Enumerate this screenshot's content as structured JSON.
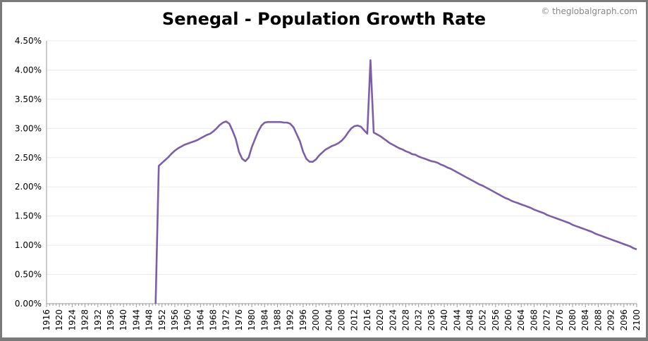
{
  "title": "Senegal - Population Growth Rate",
  "copyright": "© theglobalgraph.com",
  "colors": {
    "line": "#7b5fa8",
    "grid": "#ebebeb",
    "axis": "#999999",
    "border": "#7a7a7a"
  },
  "chart_data": {
    "type": "line",
    "title": "Senegal - Population Growth Rate",
    "xlabel": "",
    "ylabel": "",
    "xlim": [
      1916,
      2100
    ],
    "ylim": [
      0,
      4.5
    ],
    "grid": true,
    "y_unit": "%",
    "y_ticks": [
      "0.00%",
      "0.50%",
      "1.00%",
      "1.50%",
      "2.00%",
      "2.50%",
      "3.00%",
      "3.50%",
      "4.00%",
      "4.50%"
    ],
    "y_tick_values": [
      0,
      0.5,
      1,
      1.5,
      2,
      2.5,
      3,
      3.5,
      4,
      4.5
    ],
    "x_ticks": [
      "1916",
      "1920",
      "1924",
      "1928",
      "1932",
      "1936",
      "1940",
      "1944",
      "1948",
      "1952",
      "1956",
      "1960",
      "1964",
      "1968",
      "1972",
      "1976",
      "1980",
      "1984",
      "1988",
      "1992",
      "1996",
      "2000",
      "2004",
      "2008",
      "2012",
      "2016",
      "2020",
      "2024",
      "2028",
      "2032",
      "2036",
      "2040",
      "2044",
      "2048",
      "2052",
      "2056",
      "2060",
      "2064",
      "2068",
      "2072",
      "2076",
      "2080",
      "2084",
      "2088",
      "2092",
      "2096",
      "2100"
    ],
    "series": [
      {
        "x": [
          1950,
          1951,
          1952,
          1953,
          1954,
          1955,
          1956,
          1957,
          1958,
          1959,
          1960,
          1961,
          1962,
          1963,
          1964,
          1965,
          1966,
          1967,
          1968,
          1969,
          1970,
          1971,
          1972,
          1973,
          1974,
          1975,
          1976,
          1977,
          1978,
          1979,
          1980,
          1981,
          1982,
          1983,
          1984,
          1985,
          1986,
          1987,
          1988,
          1989,
          1990,
          1991,
          1992,
          1993,
          1994,
          1995,
          1996,
          1997,
          1998,
          1999,
          2000,
          2001,
          2002,
          2003,
          2004,
          2005,
          2006,
          2007,
          2008,
          2009,
          2010,
          2011,
          2012,
          2013,
          2014,
          2015,
          2016,
          2017,
          2018,
          2019,
          2020,
          2021,
          2022,
          2023,
          2024,
          2025,
          2026,
          2027,
          2028,
          2029,
          2030,
          2031,
          2032,
          2033,
          2034,
          2035,
          2036,
          2037,
          2038,
          2039,
          2040,
          2041,
          2042,
          2043,
          2044,
          2045,
          2046,
          2047,
          2048,
          2049,
          2050,
          2051,
          2052,
          2053,
          2054,
          2055,
          2056,
          2057,
          2058,
          2059,
          2060,
          2061,
          2062,
          2063,
          2064,
          2065,
          2066,
          2067,
          2068,
          2069,
          2070,
          2071,
          2072,
          2073,
          2074,
          2075,
          2076,
          2077,
          2078,
          2079,
          2080,
          2081,
          2082,
          2083,
          2084,
          2085,
          2086,
          2087,
          2088,
          2089,
          2090,
          2091,
          2092,
          2093,
          2094,
          2095,
          2096,
          2097,
          2098,
          2099,
          2100
        ],
        "values": [
          0.0,
          2.36,
          2.41,
          2.46,
          2.51,
          2.57,
          2.62,
          2.66,
          2.69,
          2.72,
          2.74,
          2.76,
          2.78,
          2.8,
          2.83,
          2.86,
          2.89,
          2.91,
          2.95,
          3.0,
          3.06,
          3.1,
          3.12,
          3.08,
          2.96,
          2.82,
          2.6,
          2.48,
          2.44,
          2.5,
          2.68,
          2.82,
          2.95,
          3.05,
          3.1,
          3.11,
          3.11,
          3.11,
          3.11,
          3.11,
          3.1,
          3.1,
          3.08,
          3.02,
          2.9,
          2.78,
          2.6,
          2.48,
          2.43,
          2.43,
          2.47,
          2.54,
          2.59,
          2.64,
          2.67,
          2.7,
          2.72,
          2.75,
          2.79,
          2.85,
          2.93,
          3.0,
          3.04,
          3.05,
          3.03,
          2.97,
          2.91,
          4.17,
          2.93,
          2.9,
          2.87,
          2.83,
          2.79,
          2.75,
          2.72,
          2.69,
          2.66,
          2.64,
          2.61,
          2.59,
          2.56,
          2.55,
          2.52,
          2.5,
          2.48,
          2.46,
          2.44,
          2.43,
          2.41,
          2.38,
          2.36,
          2.33,
          2.31,
          2.28,
          2.25,
          2.22,
          2.19,
          2.16,
          2.13,
          2.1,
          2.07,
          2.04,
          2.02,
          1.99,
          1.96,
          1.93,
          1.9,
          1.87,
          1.84,
          1.81,
          1.79,
          1.76,
          1.74,
          1.72,
          1.7,
          1.68,
          1.66,
          1.64,
          1.61,
          1.59,
          1.57,
          1.55,
          1.52,
          1.5,
          1.48,
          1.46,
          1.44,
          1.42,
          1.4,
          1.38,
          1.35,
          1.33,
          1.31,
          1.29,
          1.27,
          1.25,
          1.23,
          1.2,
          1.18,
          1.16,
          1.14,
          1.12,
          1.1,
          1.08,
          1.06,
          1.04,
          1.02,
          1.0,
          0.98,
          0.95,
          0.93
        ]
      }
    ]
  }
}
